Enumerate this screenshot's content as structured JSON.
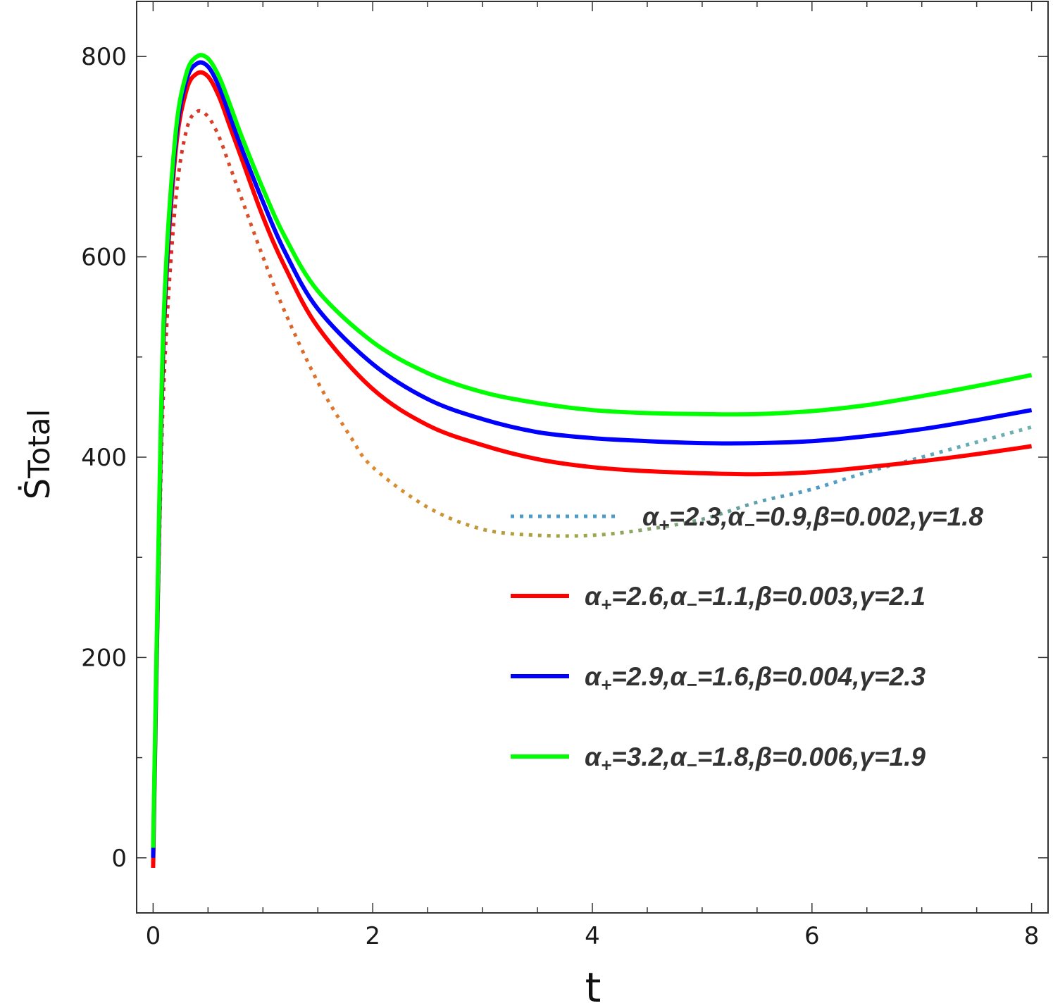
{
  "chart_data": {
    "type": "line",
    "title": "",
    "xlabel": "t",
    "ylabel": "Ṡ",
    "ylabel_sub": "Total",
    "xlim": [
      -0.15,
      8.15
    ],
    "ylim": [
      -55,
      855
    ],
    "xticks": [
      {
        "value": 0,
        "label": "0"
      },
      {
        "value": 2,
        "label": "2"
      },
      {
        "value": 4,
        "label": "4"
      },
      {
        "value": 6,
        "label": "6"
      },
      {
        "value": 8,
        "label": "8"
      }
    ],
    "yticks": [
      {
        "value": 0,
        "label": "0"
      },
      {
        "value": 200,
        "label": "200"
      },
      {
        "value": 400,
        "label": "400"
      },
      {
        "value": 600,
        "label": "600"
      },
      {
        "value": 800,
        "label": "800"
      }
    ],
    "x_minor_step": 0.5,
    "y_minor_step": 100,
    "grid": false,
    "legend_position": "center-right",
    "series": [
      {
        "name": "α₊=2.3,α₋=0.9,β=0.002,γ=1.8",
        "legend_parts": [
          "α",
          "+",
          "=2.3,",
          "α",
          "−",
          "=0.9,",
          "β",
          "=0.002,",
          "γ",
          "=1.8"
        ],
        "style": "dotted",
        "color": "gradient",
        "gradient_colors": [
          "#d62728",
          "#e08a2c",
          "#9aa84a",
          "#4b9bc9",
          "#6fb3ad"
        ],
        "x": [
          0.0,
          0.05,
          0.1,
          0.2,
          0.3,
          0.4,
          0.5,
          0.6,
          0.7,
          0.8,
          1.0,
          1.2,
          1.5,
          1.8,
          2.0,
          2.5,
          3.0,
          3.5,
          4.0,
          4.5,
          5.0,
          5.5,
          6.0,
          6.5,
          7.0,
          7.5,
          8.0
        ],
        "y": [
          0,
          280,
          480,
          650,
          725,
          745,
          740,
          720,
          690,
          660,
          600,
          545,
          475,
          420,
          390,
          350,
          328,
          322,
          322,
          328,
          338,
          355,
          368,
          385,
          400,
          415,
          430
        ]
      },
      {
        "name": "α₊=2.6,α₋=1.1,β=0.003,γ=2.1",
        "legend_parts": [
          "α",
          "+",
          "=2.6,",
          "α",
          "−",
          "=1.1,",
          "β",
          "=0.003,",
          "γ",
          "=2.1"
        ],
        "style": "solid",
        "color": "#ff0000",
        "x": [
          0.0,
          0.05,
          0.1,
          0.2,
          0.3,
          0.4,
          0.5,
          0.6,
          0.7,
          0.8,
          1.0,
          1.2,
          1.5,
          2.0,
          2.5,
          3.0,
          3.5,
          4.0,
          4.5,
          5.0,
          5.5,
          6.0,
          6.5,
          7.0,
          7.5,
          8.0
        ],
        "y": [
          -10,
          300,
          530,
          700,
          765,
          783,
          780,
          760,
          730,
          700,
          640,
          590,
          530,
          468,
          432,
          412,
          398,
          390,
          386,
          384,
          383,
          385,
          390,
          396,
          403,
          411
        ]
      },
      {
        "name": "α₊=2.9,α₋=1.6,β=0.004,γ=2.3",
        "legend_parts": [
          "α",
          "+",
          "=2.9,",
          "α",
          "−",
          "=1.6,",
          "β",
          "=0.004,",
          "γ",
          "=2.3"
        ],
        "style": "solid",
        "color": "#0000ff",
        "x": [
          0.0,
          0.05,
          0.1,
          0.2,
          0.3,
          0.4,
          0.5,
          0.6,
          0.7,
          0.8,
          1.0,
          1.2,
          1.5,
          2.0,
          2.5,
          3.0,
          3.5,
          4.0,
          4.5,
          5.0,
          5.5,
          6.0,
          6.5,
          7.0,
          7.5,
          8.0
        ],
        "y": [
          0,
          310,
          540,
          710,
          775,
          793,
          790,
          770,
          740,
          710,
          655,
          605,
          548,
          493,
          458,
          438,
          425,
          419,
          416,
          414,
          414,
          416,
          421,
          428,
          437,
          447
        ]
      },
      {
        "name": "α₊=3.2,α₋=1.8,β=0.006,γ=1.9",
        "legend_parts": [
          "α",
          "+",
          "=3.2,",
          "α",
          "−",
          "=1.8,",
          "β",
          "=0.006,",
          "γ",
          "=1.9"
        ],
        "style": "solid",
        "color": "#00ff00",
        "x": [
          0.0,
          0.05,
          0.1,
          0.2,
          0.3,
          0.4,
          0.5,
          0.6,
          0.7,
          0.8,
          1.0,
          1.2,
          1.5,
          2.0,
          2.5,
          3.0,
          3.5,
          4.0,
          4.5,
          5.0,
          5.5,
          6.0,
          6.5,
          7.0,
          7.5,
          8.0
        ],
        "y": [
          10,
          320,
          550,
          718,
          782,
          800,
          798,
          780,
          752,
          722,
          668,
          620,
          566,
          515,
          484,
          465,
          454,
          447,
          444,
          443,
          443,
          446,
          452,
          461,
          471,
          482
        ]
      }
    ]
  }
}
